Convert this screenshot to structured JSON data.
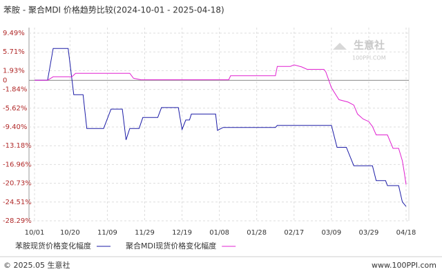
{
  "chart_data": {
    "type": "line",
    "title": "苯胺 - 聚合MDI 价格趋势比较(2024-10-01 - 2025-04-18)",
    "xlim": [
      "10/01",
      "04/18"
    ],
    "xticks": [
      "10/01",
      "10/20",
      "11/09",
      "11/29",
      "12/19",
      "01/08",
      "01/28",
      "02/17",
      "03/09",
      "03/29",
      "04/18"
    ],
    "ylim": [
      -28.29,
      9.49
    ],
    "yticks": [
      {
        "value": 9.49,
        "label": "9.49%"
      },
      {
        "value": 5.71,
        "label": "5.71%"
      },
      {
        "value": 1.93,
        "label": "1.93%"
      },
      0,
      {
        "value": -1.84,
        "label": "-1.84%"
      },
      {
        "value": -5.62,
        "label": "-5.62%"
      },
      {
        "value": -9.4,
        "label": "-9.40%"
      },
      {
        "value": -13.18,
        "label": "-13.18%"
      },
      {
        "value": -16.96,
        "label": "-16.96%"
      },
      {
        "value": -20.73,
        "label": "-20.73%"
      },
      {
        "value": -24.51,
        "label": "-24.51%"
      },
      {
        "value": -28.29,
        "label": "-28.29%"
      }
    ],
    "grid": true,
    "series": [
      {
        "name": "苯胺现货价格变化幅度",
        "color": "#1a1aa6",
        "x": [
          "10/01",
          "10/08",
          "10/11",
          "10/19",
          "10/22",
          "10/27",
          "10/29",
          "11/07",
          "11/11",
          "11/17",
          "11/19",
          "11/21",
          "11/26",
          "11/28",
          "12/06",
          "12/08",
          "12/17",
          "12/19",
          "12/21",
          "12/23",
          "12/24",
          "01/06",
          "01/07",
          "01/10",
          "02/07",
          "02/08",
          "03/09",
          "03/12",
          "03/17",
          "03/21",
          "03/31",
          "04/02",
          "04/07",
          "04/08",
          "04/14",
          "04/16",
          "04/18"
        ],
        "values": [
          0,
          0,
          6.4,
          6.4,
          -2.9,
          -2.9,
          -9.7,
          -9.7,
          -5.8,
          -5.8,
          -12,
          -9.7,
          -9.7,
          -7.5,
          -7.5,
          -5.5,
          -5.5,
          -9.9,
          -8.0,
          -8.0,
          -6.8,
          -6.8,
          -10.1,
          -9.5,
          -9.5,
          -9.1,
          -9.1,
          -13.5,
          -13.5,
          -17.2,
          -17.2,
          -20.2,
          -20.2,
          -21.2,
          -21.2,
          -24.5,
          -25.4
        ]
      },
      {
        "name": "聚合MDI现货价格变化幅度",
        "color": "#e020d0",
        "x": [
          "10/01",
          "10/08",
          "10/11",
          "10/21",
          "10/23",
          "11/21",
          "11/23",
          "11/27",
          "01/13",
          "01/14",
          "02/07",
          "02/08",
          "02/15",
          "02/17",
          "02/21",
          "02/24",
          "03/05",
          "03/06",
          "03/09",
          "03/13",
          "03/18",
          "03/21",
          "03/23",
          "03/26",
          "03/29",
          "03/31",
          "04/02",
          "04/08",
          "04/11",
          "04/14",
          "04/16",
          "04/17",
          "04/18"
        ],
        "values": [
          0,
          0,
          0.7,
          0.7,
          1.4,
          1.4,
          0.4,
          0.1,
          0.1,
          0.9,
          0.9,
          2.8,
          2.8,
          3.1,
          2.7,
          2.2,
          2.2,
          1.7,
          -1.5,
          -3.9,
          -4.4,
          -5.0,
          -6.8,
          -7.8,
          -8.3,
          -9.3,
          -11.0,
          -11.0,
          -13.7,
          -13.7,
          -16.2,
          -18.5,
          -21.0
        ]
      }
    ],
    "watermark": [
      "生意社",
      "100PPI.COM"
    ],
    "footer": {
      "left": "© 2025.05 生意社",
      "right": "www.100PPI.com"
    }
  }
}
